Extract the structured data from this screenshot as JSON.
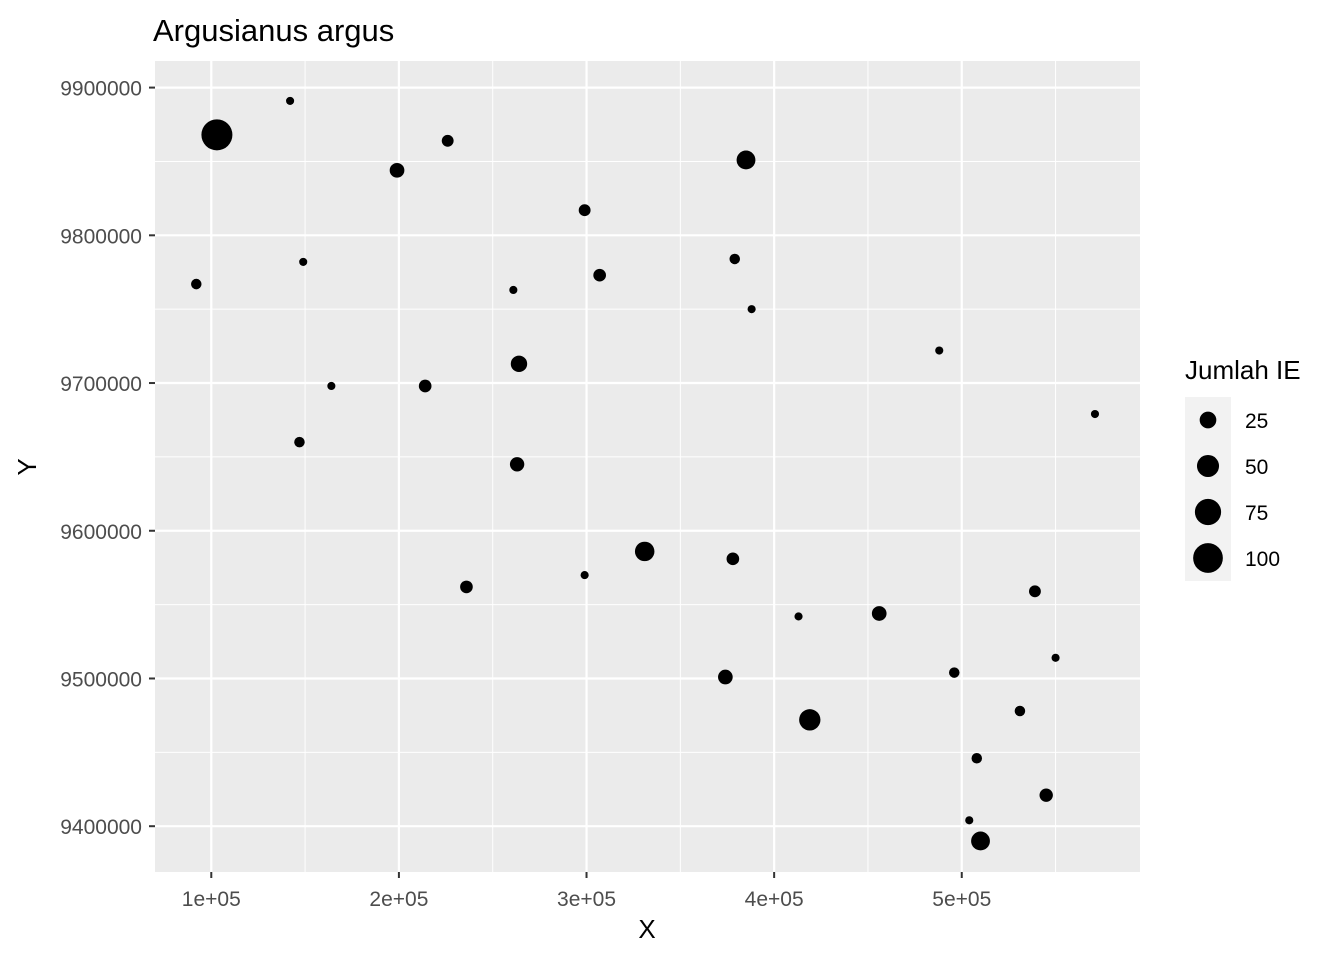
{
  "chart_data": {
    "type": "scatter",
    "title": "Argusianus argus",
    "xlabel": "X",
    "ylabel": "Y",
    "xlim": [
      70000,
      595000
    ],
    "ylim": [
      9369000,
      9918000
    ],
    "x_ticks": [
      {
        "value": 100000,
        "label": "1e+05"
      },
      {
        "value": 200000,
        "label": "2e+05"
      },
      {
        "value": 300000,
        "label": "3e+05"
      },
      {
        "value": 400000,
        "label": "4e+05"
      },
      {
        "value": 500000,
        "label": "5e+05"
      }
    ],
    "y_ticks": [
      {
        "value": 9400000,
        "label": "9400000"
      },
      {
        "value": 9500000,
        "label": "9500000"
      },
      {
        "value": 9600000,
        "label": "9600000"
      },
      {
        "value": 9700000,
        "label": "9700000"
      },
      {
        "value": 9800000,
        "label": "9800000"
      },
      {
        "value": 9900000,
        "label": "9900000"
      }
    ],
    "grid": true,
    "size_legend": {
      "title": "Jumlah IE",
      "placement": "right",
      "entries": [
        {
          "value": 25,
          "label": "25"
        },
        {
          "value": 50,
          "label": "50"
        },
        {
          "value": 75,
          "label": "75"
        },
        {
          "value": 100,
          "label": "100"
        }
      ]
    },
    "points": [
      {
        "x": 103000,
        "y": 9868000,
        "size": 110
      },
      {
        "x": 142000,
        "y": 9891000,
        "size": 3
      },
      {
        "x": 226000,
        "y": 9864000,
        "size": 10
      },
      {
        "x": 199000,
        "y": 9844000,
        "size": 18
      },
      {
        "x": 385000,
        "y": 9851000,
        "size": 34
      },
      {
        "x": 299000,
        "y": 9817000,
        "size": 10
      },
      {
        "x": 92000,
        "y": 9767000,
        "size": 7
      },
      {
        "x": 149000,
        "y": 9782000,
        "size": 3
      },
      {
        "x": 261000,
        "y": 9763000,
        "size": 3
      },
      {
        "x": 307000,
        "y": 9773000,
        "size": 12
      },
      {
        "x": 379000,
        "y": 9784000,
        "size": 7
      },
      {
        "x": 388000,
        "y": 9750000,
        "size": 3
      },
      {
        "x": 488000,
        "y": 9722000,
        "size": 3
      },
      {
        "x": 264000,
        "y": 9713000,
        "size": 24
      },
      {
        "x": 164000,
        "y": 9698000,
        "size": 3
      },
      {
        "x": 214000,
        "y": 9698000,
        "size": 12
      },
      {
        "x": 571000,
        "y": 9679000,
        "size": 3
      },
      {
        "x": 147000,
        "y": 9660000,
        "size": 7
      },
      {
        "x": 263000,
        "y": 9645000,
        "size": 17
      },
      {
        "x": 331000,
        "y": 9586000,
        "size": 37
      },
      {
        "x": 378000,
        "y": 9581000,
        "size": 12
      },
      {
        "x": 236000,
        "y": 9562000,
        "size": 12
      },
      {
        "x": 299000,
        "y": 9570000,
        "size": 3
      },
      {
        "x": 539000,
        "y": 9559000,
        "size": 10
      },
      {
        "x": 413000,
        "y": 9542000,
        "size": 3
      },
      {
        "x": 456000,
        "y": 9544000,
        "size": 18
      },
      {
        "x": 550000,
        "y": 9514000,
        "size": 3
      },
      {
        "x": 374000,
        "y": 9501000,
        "size": 18
      },
      {
        "x": 496000,
        "y": 9504000,
        "size": 7
      },
      {
        "x": 419000,
        "y": 9472000,
        "size": 46
      },
      {
        "x": 531000,
        "y": 9478000,
        "size": 7
      },
      {
        "x": 508000,
        "y": 9446000,
        "size": 7
      },
      {
        "x": 545000,
        "y": 9421000,
        "size": 14
      },
      {
        "x": 504000,
        "y": 9404000,
        "size": 3
      },
      {
        "x": 510000,
        "y": 9390000,
        "size": 34
      }
    ]
  }
}
